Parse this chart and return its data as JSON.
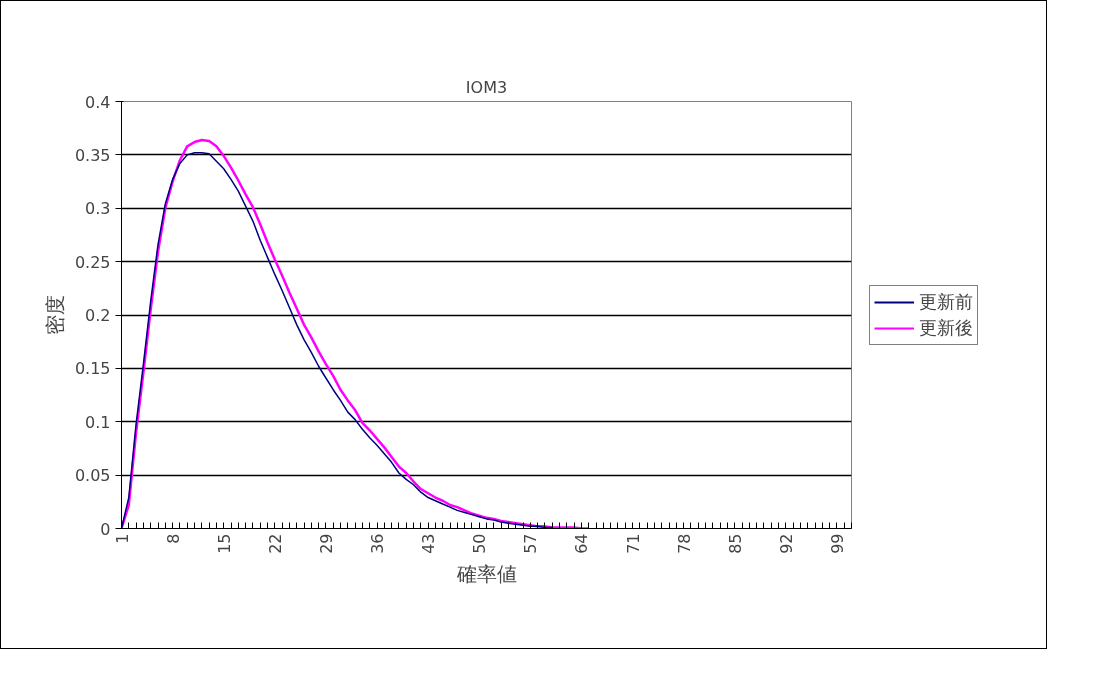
{
  "chart_data": {
    "type": "line",
    "title": "IOM3",
    "xlabel": "確率値",
    "ylabel": "密度",
    "categories": [
      "1",
      null,
      null,
      null,
      null,
      null,
      null,
      "8",
      null,
      null,
      null,
      null,
      null,
      null,
      "15",
      null,
      null,
      null,
      null,
      null,
      null,
      "22",
      null,
      null,
      null,
      null,
      null,
      null,
      "29",
      null,
      null,
      null,
      null,
      null,
      null,
      "36",
      null,
      null,
      null,
      null,
      null,
      null,
      "43",
      null,
      null,
      null,
      null,
      null,
      null,
      "50",
      null,
      null,
      null,
      null,
      null,
      null,
      "57",
      null,
      null,
      null,
      null,
      null,
      null,
      "64",
      null,
      null,
      null,
      null,
      null,
      null,
      "71",
      null,
      null,
      null,
      null,
      null,
      null,
      "78",
      null,
      null,
      null,
      null,
      null,
      null,
      "85",
      null,
      null,
      null,
      null,
      null,
      null,
      "92",
      null,
      null,
      null,
      null,
      null,
      null,
      "99",
      null,
      null
    ],
    "series": [
      {
        "name": "更新前",
        "color": "#000080",
        "values": [
          0,
          0.029,
          0.098,
          0.154,
          0.213,
          0.266,
          0.304,
          0.327,
          0.342,
          0.35,
          0.352,
          0.352,
          0.351,
          0.344,
          0.337,
          0.327,
          0.316,
          0.302,
          0.288,
          0.27,
          0.254,
          0.238,
          0.223,
          0.207,
          0.191,
          0.177,
          0.165,
          0.152,
          0.141,
          0.13,
          0.12,
          0.109,
          0.102,
          0.093,
          0.085,
          0.078,
          0.07,
          0.062,
          0.052,
          0.046,
          0.041,
          0.034,
          0.029,
          0.026,
          0.023,
          0.02,
          0.017,
          0.015,
          0.013,
          0.011,
          0.009,
          0.008,
          0.006,
          0.005,
          0.004,
          0.003,
          0.002,
          0.002,
          0.001,
          0.001,
          null,
          null,
          null,
          null,
          null,
          null,
          null,
          null,
          null,
          null,
          null,
          null,
          null,
          null,
          null,
          null,
          null,
          null,
          null,
          null,
          null,
          null,
          null,
          null,
          null,
          null,
          null,
          null,
          null,
          null,
          null,
          null,
          null,
          null,
          null,
          null,
          null,
          null,
          null,
          null,
          null
        ]
      },
      {
        "name": "更新後",
        "color": "#ff00ff",
        "values": [
          0,
          0.022,
          0.09,
          0.146,
          0.205,
          0.259,
          0.3,
          0.325,
          0.345,
          0.358,
          0.362,
          0.364,
          0.363,
          0.358,
          0.349,
          0.338,
          0.326,
          0.313,
          0.301,
          0.285,
          0.268,
          0.252,
          0.237,
          0.221,
          0.206,
          0.191,
          0.179,
          0.166,
          0.154,
          0.143,
          0.13,
          0.12,
          0.111,
          0.099,
          0.092,
          0.084,
          0.076,
          0.067,
          0.058,
          0.052,
          0.044,
          0.037,
          0.033,
          0.029,
          0.026,
          0.022,
          0.02,
          0.017,
          0.014,
          0.012,
          0.01,
          0.009,
          0.007,
          0.006,
          0.005,
          0.004,
          0.003,
          0.002,
          0.002,
          0.001,
          0.001,
          0.001,
          0.001,
          0,
          0,
          null,
          null,
          null,
          null,
          null,
          null,
          null,
          null,
          null,
          null,
          null,
          null,
          null,
          null,
          null,
          null,
          null,
          null,
          null,
          null,
          null,
          null,
          null,
          null,
          null,
          null,
          null,
          null,
          null,
          null,
          null,
          null,
          null,
          null,
          null,
          null
        ]
      }
    ],
    "ylim": [
      0,
      0.4
    ],
    "yticks": [
      {
        "value": 0,
        "label": "0"
      },
      0.05,
      0.1,
      0.15,
      0.2,
      0.25,
      0.3,
      0.35,
      0.4
    ],
    "grid": "y",
    "legend": "right"
  }
}
